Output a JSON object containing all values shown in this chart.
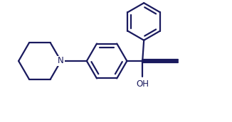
{
  "line_color": "#1a1a5e",
  "line_width": 1.6,
  "bg_color": "#ffffff",
  "font_size": 8.5,
  "N_label": "N",
  "OH_label": "OH",
  "figw": 3.26,
  "figh": 1.72,
  "dpi": 100
}
